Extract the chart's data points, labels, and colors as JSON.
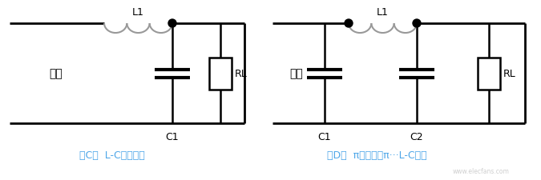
{
  "bg_color": "#ffffff",
  "line_color": "#000000",
  "inductor_color": "#999999",
  "label_color": "#4da6e8",
  "text_color": "#000000",
  "circuit_C_label": "（C）  L-C电感滤波",
  "circuit_D_label": "（D）  π型滤波或π···L-C滤波",
  "input_label": "输入",
  "L1_label": "L1",
  "C1_label": "C1",
  "C2_label": "C2",
  "RL_label": "RL",
  "figsize": [
    6.75,
    2.26
  ],
  "dpi": 100
}
